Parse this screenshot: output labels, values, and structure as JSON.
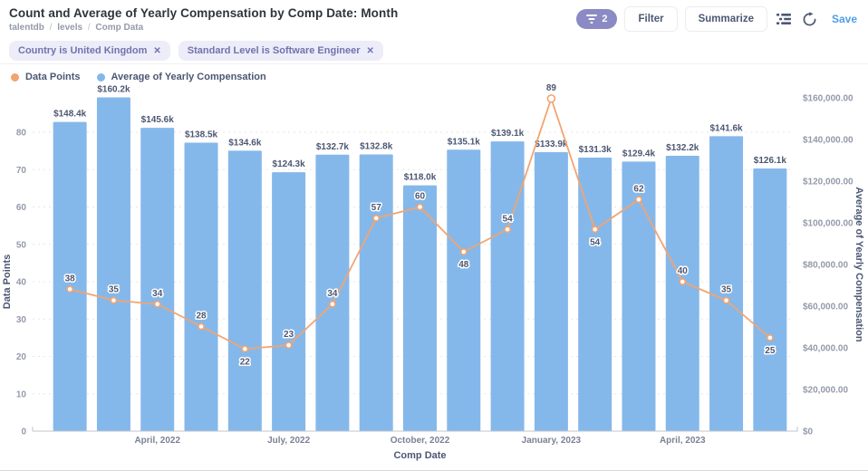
{
  "header": {
    "title": "Count and Average of Yearly Compensation by Comp Date: Month",
    "breadcrumb": [
      "talentdb",
      "levels",
      "Comp Data"
    ],
    "breadcrumb_sep": "/",
    "filter_count": "2",
    "filter_label": "Filter",
    "summarize_label": "Summarize",
    "save_label": "Save"
  },
  "icons": {
    "close": "✕"
  },
  "filters": [
    {
      "label": "Country is United Kingdom"
    },
    {
      "label": "Standard Level is Software Engineer"
    }
  ],
  "legend": [
    {
      "label": "Data Points",
      "color": "#F2A470"
    },
    {
      "label": "Average of Yearly Compensation",
      "color": "#85B8EA"
    }
  ],
  "colors": {
    "bar": "#85B8EA",
    "line": "#F2A470",
    "brand": "#509EE3",
    "chip_bg": "#EDECF9",
    "chip_text": "#7173AD",
    "pill_bg": "#8C8AC4",
    "text_dark": "#4C5773",
    "tick_gray": "#949AAB"
  },
  "chart_data": {
    "type": "combo",
    "title": "Count and Average of Yearly Compensation by Comp Date: Month",
    "series": [
      {
        "name": "Data Points",
        "type": "line",
        "axis": "left",
        "color": "#F2A470",
        "values": [
          38,
          35,
          34,
          28,
          22,
          23,
          34,
          57,
          60,
          48,
          54,
          89,
          54,
          62,
          40,
          35,
          25
        ]
      },
      {
        "name": "Average of Yearly Compensation",
        "type": "bar",
        "axis": "right",
        "color": "#85B8EA",
        "values": [
          148400,
          160200,
          145600,
          138500,
          134600,
          124300,
          132700,
          132800,
          118000,
          135100,
          139100,
          133900,
          131300,
          129400,
          132200,
          141600,
          126100
        ],
        "labels": [
          "$148.4k",
          "$160.2k",
          "$145.6k",
          "$138.5k",
          "$134.6k",
          "$124.3k",
          "$132.7k",
          "$132.8k",
          "$118.0k",
          "$135.1k",
          "$139.1k",
          "$133.9k",
          "$131.3k",
          "$129.4k",
          "$132.2k",
          "$141.6k",
          "$126.1k"
        ]
      }
    ],
    "x_axis": {
      "title": "Comp Date",
      "ticks": [
        {
          "slot": 2,
          "label": "April, 2022"
        },
        {
          "slot": 5,
          "label": "July, 2022"
        },
        {
          "slot": 8,
          "label": "October, 2022"
        },
        {
          "slot": 11,
          "label": "January, 2023"
        },
        {
          "slot": 14,
          "label": "April, 2023"
        }
      ]
    },
    "left_axis": {
      "title": "Data Points",
      "min": 0,
      "max": 80,
      "tick_step": 10
    },
    "right_axis": {
      "title": "Average of Yearly Compensation",
      "min": 0,
      "max": 160000,
      "tick_labels": [
        "$0",
        "$20,000.00",
        "$40,000.00",
        "$60,000.00",
        "$80,000.00",
        "$100,000.00",
        "$120,000.00",
        "$140,000.00",
        "$160,000.00"
      ]
    },
    "grid": true,
    "legend_position": "top-left"
  }
}
